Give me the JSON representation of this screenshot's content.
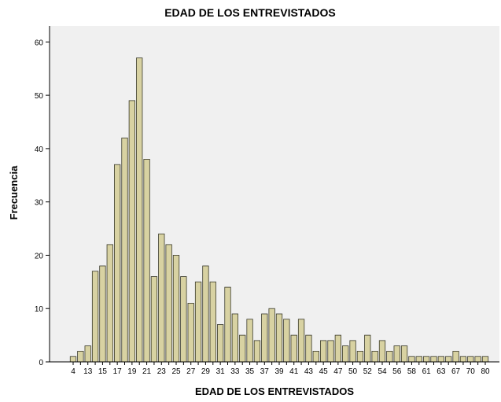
{
  "chart_data": {
    "type": "bar",
    "title": "EDAD DE LOS ENTREVISTADOS",
    "xlabel": "EDAD DE LOS ENTREVISTADOS",
    "ylabel": "Frecuencia",
    "ylim": [
      0,
      63
    ],
    "yticks": [
      0,
      10,
      20,
      30,
      40,
      50,
      60
    ],
    "grid": false,
    "colors": {
      "bar_fill": "#D8D2A2",
      "bar_stroke": "#3A3A2A",
      "plot_bg": "#F0F0F0"
    },
    "categories": [
      "4",
      "11",
      "13",
      "14",
      "15",
      "16",
      "17",
      "18",
      "19",
      "20",
      "21",
      "22",
      "23",
      "24",
      "25",
      "26",
      "27",
      "28",
      "29",
      "30",
      "31",
      "32",
      "33",
      "34",
      "35",
      "36",
      "37",
      "38",
      "39",
      "40",
      "41",
      "42",
      "43",
      "44",
      "45",
      "46",
      "47",
      "48",
      "50",
      "51",
      "52",
      "53",
      "54",
      "55",
      "56",
      "57",
      "58",
      "59",
      "61",
      "62",
      "63",
      "64",
      "67",
      "68",
      "70",
      "75",
      "80"
    ],
    "tick_labels": [
      "4",
      "",
      "13",
      "",
      "15",
      "",
      "17",
      "",
      "19",
      "",
      "21",
      "",
      "23",
      "",
      "25",
      "",
      "27",
      "",
      "29",
      "",
      "31",
      "",
      "33",
      "",
      "35",
      "",
      "37",
      "",
      "39",
      "",
      "41",
      "",
      "43",
      "",
      "45",
      "",
      "47",
      "",
      "50",
      "",
      "52",
      "",
      "54",
      "",
      "56",
      "",
      "58",
      "",
      "61",
      "",
      "63",
      "",
      "67",
      "",
      "70",
      "",
      "80"
    ],
    "values": [
      1,
      2,
      3,
      17,
      18,
      22,
      37,
      42,
      49,
      57,
      38,
      16,
      24,
      22,
      20,
      16,
      11,
      15,
      18,
      15,
      7,
      14,
      9,
      5,
      8,
      4,
      9,
      10,
      9,
      8,
      5,
      8,
      5,
      2,
      4,
      4,
      5,
      3,
      4,
      2,
      5,
      2,
      4,
      2,
      3,
      3,
      1,
      1,
      1,
      1,
      1,
      1,
      2,
      1,
      1,
      1,
      1
    ]
  }
}
